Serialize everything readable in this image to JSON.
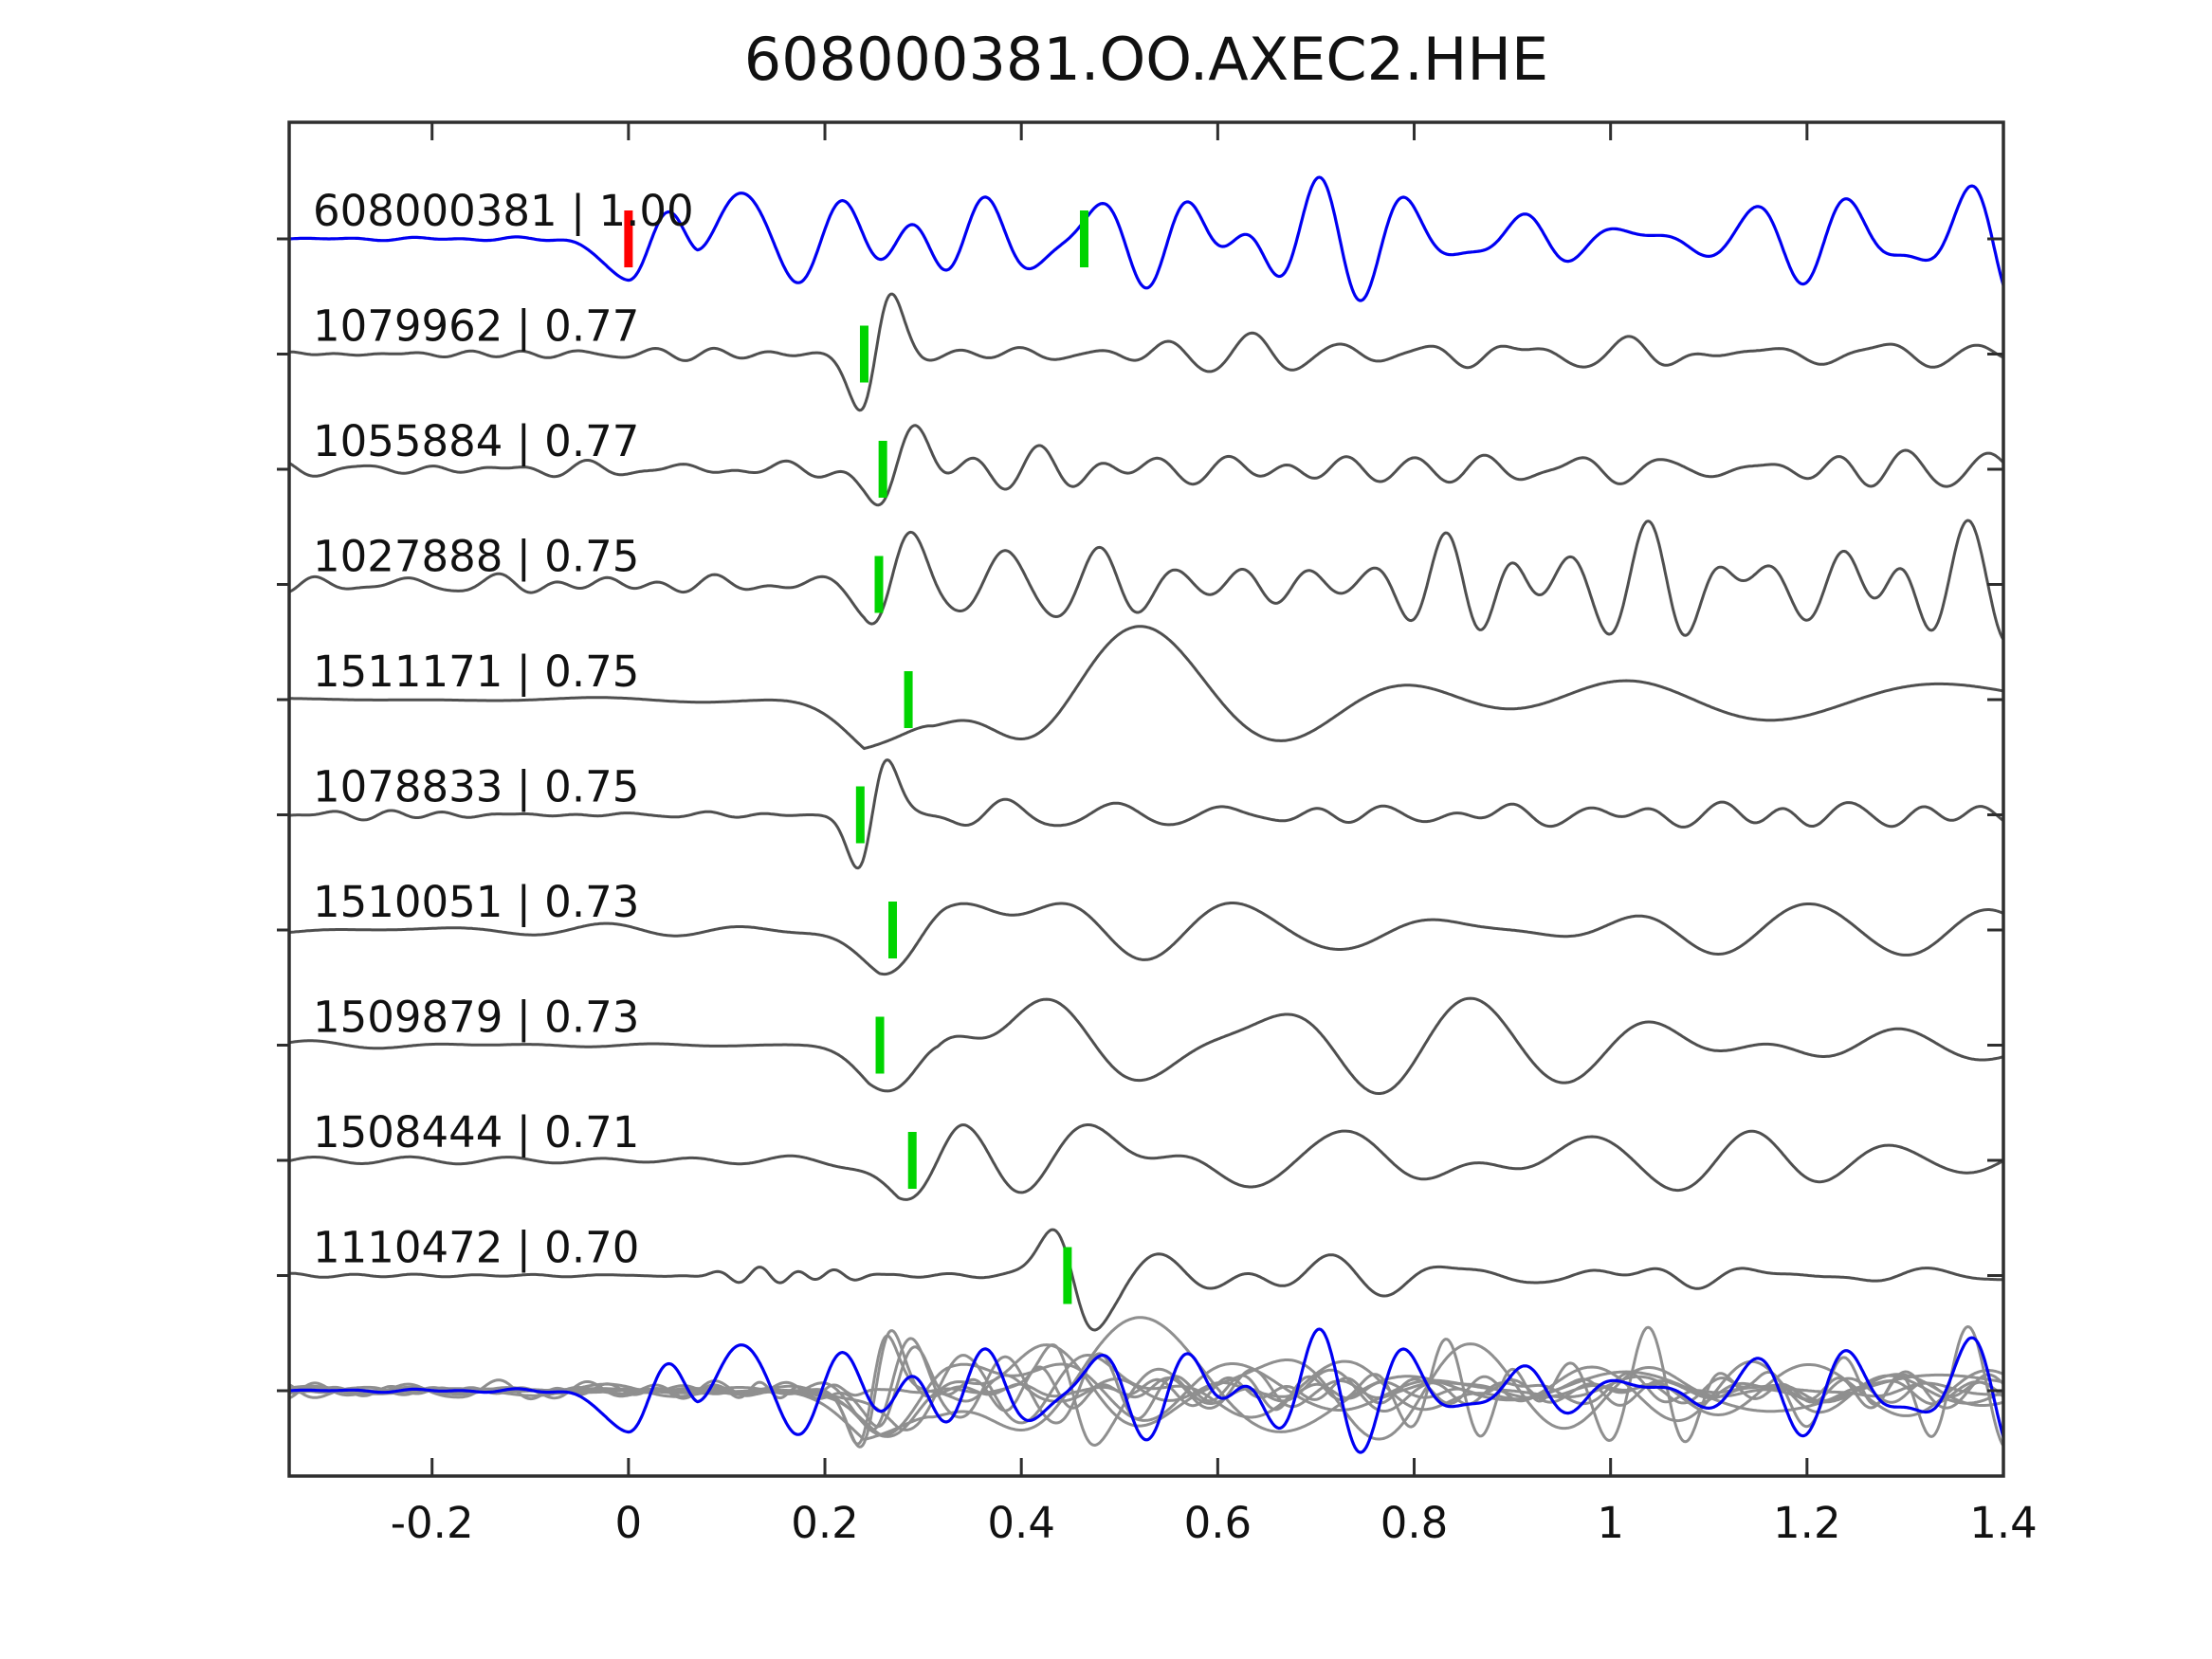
{
  "title": "608000381.OO.AXEC2.HHE",
  "chart_data": {
    "type": "line",
    "variant": "seismic-waveform-stack",
    "title": "608000381.OO.AXEC2.HHE",
    "xlabel": "",
    "ylabel": "",
    "grid": false,
    "legend": "none",
    "x_axis": {
      "xlim": [
        -0.3455,
        1.4
      ],
      "tick_values": [
        -0.2,
        0,
        0.2,
        0.4,
        0.6,
        0.8,
        1,
        1.2,
        1.4
      ],
      "tick_labels": [
        "-0.2",
        "0",
        "0.2",
        "0.4",
        "0.6",
        "0.8",
        "1",
        "1.2",
        "1.4"
      ]
    },
    "colors": {
      "reference": "#0000f2",
      "match": "#4f4f4f",
      "overlay_match": "#8f8f8f",
      "pick": "#00d400",
      "origin": "#ff0000",
      "axis": "#2e2e2e",
      "text": "#111111"
    },
    "traces": [
      {
        "id": "608000381",
        "cc": "1.00",
        "label": "608000381 | 1.00",
        "role": "reference",
        "color_key": "reference",
        "marks": [
          {
            "t": 0.0,
            "color_key": "origin"
          },
          {
            "t": 0.464,
            "color_key": "pick"
          }
        ],
        "synth": {
          "seed": 101,
          "onset": 0.0,
          "noise_amp": 1.2,
          "noise_freq": [
            8,
            20
          ],
          "sig_amp": 46,
          "sustain": 0.8,
          "decay": 0.6,
          "freq": [
            8,
            17
          ],
          "pulse": {
            "t": 0.03,
            "amp": 45,
            "sigma": 0.03
          }
        }
      },
      {
        "id": "1079962",
        "cc": "0.77",
        "label": "1079962 | 0.77",
        "role": "match",
        "color_key": "match",
        "marks": [
          {
            "t": 0.24,
            "color_key": "pick"
          }
        ],
        "synth": {
          "seed": 202,
          "onset": 0.228,
          "noise_amp": 3.2,
          "noise_freq": [
            9,
            22
          ],
          "sig_amp": 13,
          "sustain": 0.8,
          "decay": 0.5,
          "freq": [
            7,
            15
          ],
          "pulse": {
            "t": 0.252,
            "amp": 58,
            "sigma": 0.016
          }
        }
      },
      {
        "id": "1055884",
        "cc": "0.77",
        "label": "1055884 | 0.77",
        "role": "match",
        "color_key": "match",
        "marks": [
          {
            "t": 0.259,
            "color_key": "pick"
          }
        ],
        "synth": {
          "seed": 303,
          "onset": 0.24,
          "noise_amp": 6.5,
          "noise_freq": [
            8,
            20
          ],
          "sig_amp": 23,
          "sustain": 0.75,
          "decay": 0.5,
          "freq": [
            7,
            16
          ],
          "pulse": {
            "t": 0.272,
            "amp": 34,
            "sigma": 0.02
          }
        }
      },
      {
        "id": "1027888",
        "cc": "0.75",
        "label": "1027888 | 0.75",
        "role": "match",
        "color_key": "match",
        "marks": [
          {
            "t": 0.255,
            "color_key": "pick"
          }
        ],
        "synth": {
          "seed": 404,
          "onset": 0.24,
          "noise_amp": 8.5,
          "noise_freq": [
            8,
            20
          ],
          "sig_amp": 36,
          "sustain": 0.95,
          "decay": 0.6,
          "freq": [
            8,
            17
          ],
          "pulse": {
            "t": 0.272,
            "amp": 36,
            "sigma": 0.02
          }
        }
      },
      {
        "id": "1511171",
        "cc": "0.75",
        "label": "1511171 | 0.75",
        "role": "match",
        "color_key": "match",
        "marks": [
          {
            "t": 0.285,
            "color_key": "pick"
          }
        ],
        "synth": {
          "seed": 505,
          "onset": 0.24,
          "noise_amp": 1.4,
          "noise_freq": [
            2.5,
            6
          ],
          "sig_amp": 55,
          "sustain": 0.3,
          "decay": 0.5,
          "freq": [
            2.4,
            4.5
          ],
          "pulse": {
            "t": 0.315,
            "amp": 65,
            "sigma": 0.05
          }
        }
      },
      {
        "id": "1078833",
        "cc": "0.75",
        "label": "1078833 | 0.75",
        "role": "match",
        "color_key": "match",
        "marks": [
          {
            "t": 0.236,
            "color_key": "pick"
          }
        ],
        "synth": {
          "seed": 606,
          "onset": 0.225,
          "noise_amp": 3.2,
          "noise_freq": [
            9,
            22
          ],
          "sig_amp": 11,
          "sustain": 0.8,
          "decay": 0.5,
          "freq": [
            7,
            15
          ],
          "pulse": {
            "t": 0.248,
            "amp": 56,
            "sigma": 0.015
          }
        }
      },
      {
        "id": "1510051",
        "cc": "0.73",
        "label": "1510051 | 0.73",
        "role": "match",
        "color_key": "match",
        "marks": [
          {
            "t": 0.269,
            "color_key": "pick"
          }
        ],
        "synth": {
          "seed": 707,
          "onset": 0.255,
          "noise_amp": 4.5,
          "noise_freq": [
            4,
            9
          ],
          "sig_amp": 38,
          "sustain": 0.45,
          "decay": 0.45,
          "freq": [
            3,
            6.5
          ],
          "pulse": {
            "t": 0.315,
            "amp": 48,
            "sigma": 0.045
          }
        }
      },
      {
        "id": "1509879",
        "cc": "0.73",
        "label": "1509879 | 0.73",
        "role": "match",
        "color_key": "match",
        "marks": [
          {
            "t": 0.256,
            "color_key": "pick"
          }
        ],
        "synth": {
          "seed": 808,
          "onset": 0.245,
          "noise_amp": 4.0,
          "noise_freq": [
            5,
            11
          ],
          "sig_amp": 48,
          "sustain": 0.5,
          "decay": 0.5,
          "freq": [
            3.5,
            7.5
          ],
          "pulse": {
            "t": 0.3,
            "amp": 52,
            "sigma": 0.035
          }
        }
      },
      {
        "id": "1508444",
        "cc": "0.71",
        "label": "1508444 | 0.71",
        "role": "match",
        "color_key": "match",
        "marks": [
          {
            "t": 0.289,
            "color_key": "pick"
          }
        ],
        "synth": {
          "seed": 909,
          "onset": 0.275,
          "noise_amp": 4.0,
          "noise_freq": [
            5,
            11
          ],
          "sig_amp": 46,
          "sustain": 0.42,
          "decay": 0.5,
          "freq": [
            3.5,
            7.5
          ],
          "pulse": {
            "t": 0.325,
            "amp": 52,
            "sigma": 0.035
          }
        }
      },
      {
        "id": "1110472",
        "cc": "0.70",
        "label": "1110472 | 0.70",
        "role": "match",
        "color_key": "match",
        "marks": [
          {
            "t": 0.447,
            "color_key": "pick"
          }
        ],
        "synth": {
          "seed": 121,
          "onset": 0.43,
          "noise_amp": 2.2,
          "noise_freq": [
            8,
            18
          ],
          "sig_amp": 34,
          "sustain": 0.15,
          "decay": 0.22,
          "freq": [
            6,
            13
          ],
          "pulse": {
            "t": 0.452,
            "amp": -50,
            "sigma": 0.02
          },
          "bursts": [
            {
              "t0": 0.04,
              "t1": 0.28,
              "amp": 5.5
            }
          ]
        }
      }
    ],
    "overlay_row": {
      "description": "all matches overlaid in light gray with reference in blue",
      "gray_color_key": "overlay_match",
      "reference_color_key": "reference"
    }
  }
}
